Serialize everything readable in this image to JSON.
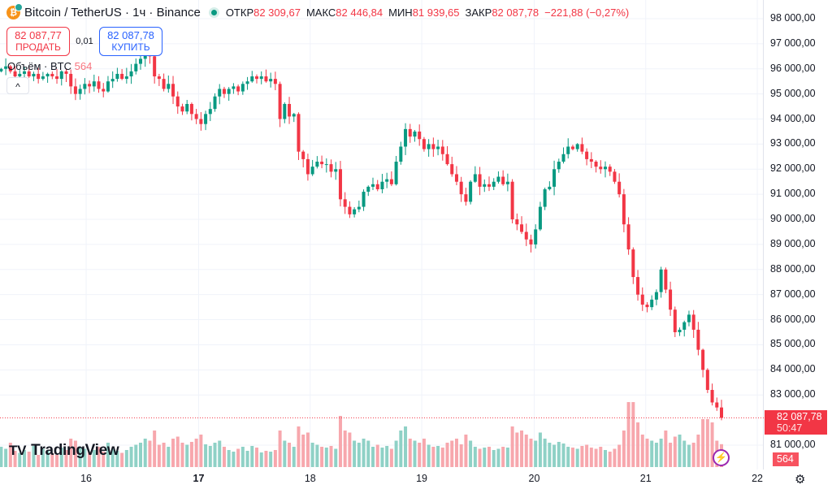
{
  "header": {
    "symbol": "Bitcoin / TetherUS · 1ч · Binance",
    "coin_glyph": "₿",
    "open_label": "ОТКР",
    "open": "82 309,67",
    "high_label": "МАКС",
    "high": "82 446,84",
    "low_label": "МИН",
    "low": "81 939,65",
    "close_label": "ЗАКР",
    "close": "82 087,78",
    "change": "−221,88 (−0,27%)"
  },
  "trade": {
    "sell_price": "82 087,77",
    "sell_label": "ПРОДАТЬ",
    "spread": "0,01",
    "buy_price": "82 087,78",
    "buy_label": "КУПИТЬ"
  },
  "volume_legend": {
    "label": "Объём · BTC",
    "value": "564"
  },
  "collapse_glyph": "^",
  "logo": {
    "mark": "TV",
    "text": "TradingView"
  },
  "current": {
    "price": "82 087,78",
    "countdown": "50:47",
    "volume": "564"
  },
  "colors": {
    "up": "#089981",
    "down": "#f23645",
    "vol_up": "#8fd1c6",
    "vol_down": "#f7a7ad",
    "grid": "#f0f3fa"
  },
  "chart_data": {
    "type": "candlestick",
    "interval": "1h",
    "ylim": [
      80500,
      98400
    ],
    "y_ticks": [
      98000,
      97000,
      96000,
      95000,
      94000,
      93000,
      92000,
      91000,
      90000,
      89000,
      88000,
      87000,
      86000,
      85000,
      84000,
      83000,
      81000
    ],
    "y_tick_labels": [
      "98 000,00",
      "97 000,00",
      "96 000,00",
      "95 000,00",
      "94 000,00",
      "93 000,00",
      "92 000,00",
      "91 000,00",
      "90 000,00",
      "89 000,00",
      "88 000,00",
      "87 000,00",
      "86 000,00",
      "85 000,00",
      "84 000,00",
      "83 000,00",
      "81 000,00"
    ],
    "x_ticks": [
      {
        "label": "16",
        "index": 18.3
      },
      {
        "label": "17",
        "index": 42.5
      },
      {
        "label": "18",
        "index": 66.5
      },
      {
        "label": "19",
        "index": 90.5
      },
      {
        "label": "20",
        "index": 114.7
      },
      {
        "label": "21",
        "index": 138.7
      },
      {
        "label": "22",
        "index": 162.7
      }
    ],
    "first_open": 95900,
    "closes": [
      96000,
      96100,
      95900,
      95700,
      95800,
      95900,
      95700,
      95800,
      95600,
      95700,
      95800,
      95700,
      95600,
      95900,
      95800,
      95300,
      95000,
      95200,
      95400,
      95300,
      95500,
      95200,
      95100,
      95500,
      95600,
      95800,
      95600,
      95700,
      95900,
      96200,
      96400,
      96600,
      96500,
      95700,
      95600,
      95200,
      95400,
      94900,
      94500,
      94300,
      94600,
      94200,
      94000,
      93800,
      94200,
      94400,
      94900,
      95200,
      95000,
      95200,
      95300,
      95100,
      95400,
      95500,
      95700,
      95600,
      95700,
      95500,
      95600,
      95400,
      94000,
      94600,
      94100,
      94200,
      92700,
      92400,
      91800,
      92100,
      92300,
      92200,
      92200,
      91900,
      92000,
      90800,
      90500,
      90200,
      90400,
      90500,
      91100,
      91300,
      91400,
      91200,
      91500,
      91600,
      91400,
      92300,
      92900,
      93600,
      93300,
      93500,
      93200,
      92800,
      93000,
      92800,
      92900,
      92600,
      92200,
      91800,
      91500,
      91000,
      90700,
      91500,
      91800,
      91300,
      91400,
      91300,
      91500,
      91700,
      91400,
      91500,
      90000,
      89800,
      89500,
      89200,
      89000,
      89600,
      90500,
      91200,
      91300,
      92000,
      92300,
      92600,
      92900,
      92800,
      93000,
      92700,
      92400,
      92300,
      92100,
      92000,
      92100,
      91900,
      91500,
      91000,
      89800,
      88800,
      87700,
      87000,
      86600,
      86500,
      86800,
      87100,
      88000,
      87200,
      86400,
      85500,
      85600,
      85900,
      86200,
      85600,
      84800,
      84000,
      83200,
      82700,
      82500,
      82088
    ],
    "volumes": [
      500,
      450,
      600,
      400,
      350,
      420,
      380,
      520,
      300,
      450,
      400,
      350,
      300,
      480,
      420,
      700,
      650,
      500,
      450,
      380,
      420,
      500,
      380,
      600,
      450,
      400,
      350,
      420,
      500,
      550,
      600,
      700,
      650,
      900,
      550,
      600,
      500,
      700,
      750,
      600,
      550,
      620,
      700,
      800,
      560,
      520,
      600,
      650,
      500,
      420,
      380,
      450,
      500,
      400,
      520,
      480,
      360,
      400,
      380,
      420,
      900,
      650,
      600,
      500,
      1000,
      800,
      850,
      600,
      550,
      500,
      480,
      520,
      450,
      1260,
      900,
      850,
      650,
      600,
      700,
      650,
      500,
      550,
      480,
      520,
      450,
      650,
      900,
      1000,
      700,
      650,
      600,
      700,
      550,
      500,
      520,
      480,
      600,
      650,
      700,
      560,
      800,
      650,
      500,
      450,
      480,
      500,
      420,
      450,
      500,
      480,
      1000,
      850,
      900,
      800,
      700,
      650,
      850,
      700,
      600,
      550,
      620,
      580,
      500,
      480,
      450,
      520,
      550,
      480,
      450,
      500,
      420,
      380,
      450,
      550,
      900,
      1600,
      1600,
      1100,
      800,
      700,
      650,
      600,
      700,
      900,
      600,
      750,
      800,
      650,
      550,
      600,
      800,
      1180,
      1180,
      1100,
      650,
      564
    ]
  }
}
